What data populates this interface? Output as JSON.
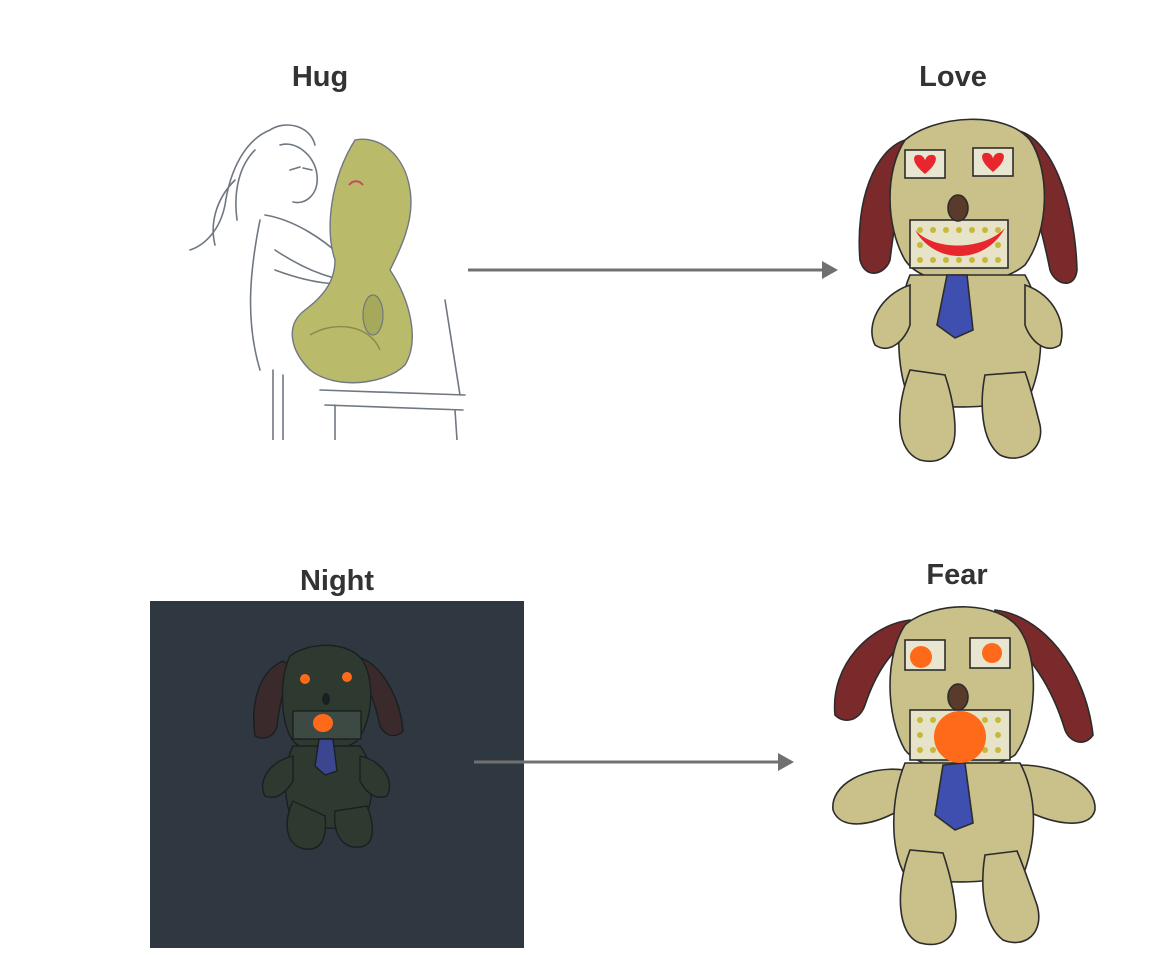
{
  "labels": {
    "hug": "Hug",
    "love": "Love",
    "night": "Night",
    "fear": "Fear"
  },
  "colors": {
    "title_text": "#333333",
    "arrow": "#707070",
    "night_background": "#2f3740",
    "plush_fur": "#c9c08a",
    "plush_fur_hug": "#b9bb6a",
    "plush_ears": "#7a2a2a",
    "plush_tie": "#3f4fb0",
    "love_accent": "#e8262e",
    "fear_accent": "#ff6a1a",
    "sketch_line": "#6f7782"
  },
  "icons": {
    "hug_scene": "girl-hugging-plush-sketch",
    "love_plush": "plush-dog-heart-eyes-smile",
    "night_plush": "dark-plush-dog-glowing-eyes",
    "fear_plush": "plush-dog-orange-eyes-open-mouth",
    "arrow": "right-arrow"
  }
}
